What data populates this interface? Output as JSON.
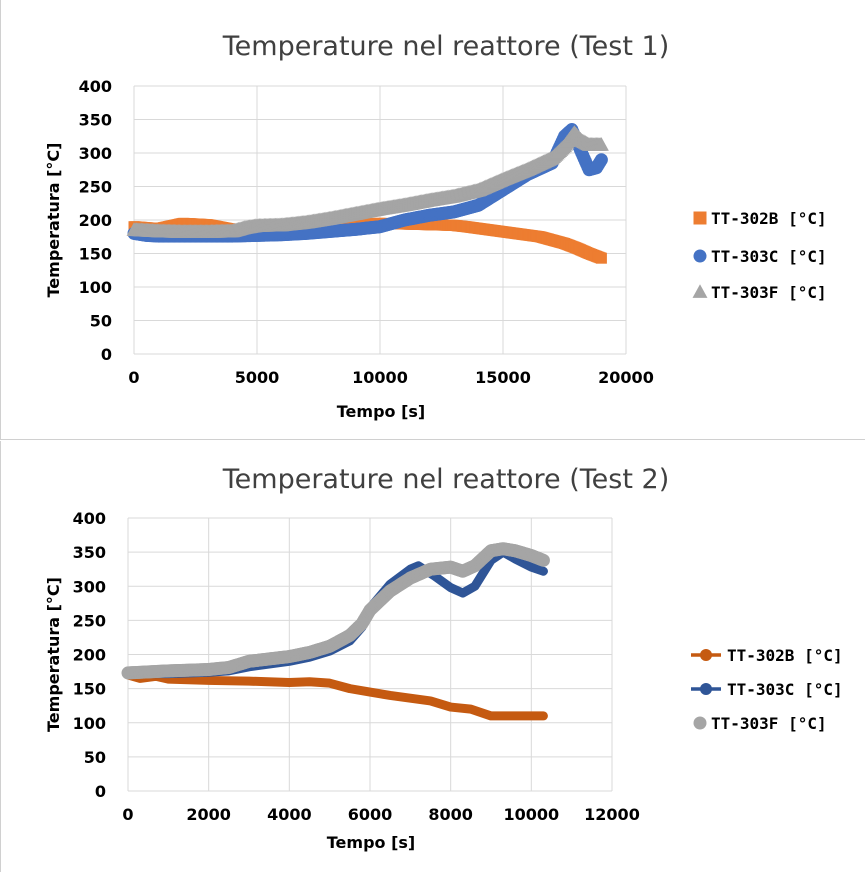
{
  "chart_data": [
    {
      "type": "scatter",
      "title": "Temperature nel reattore (Test 1)",
      "xlabel": "Tempo [s]",
      "ylabel": "Temperatura [°C]",
      "xlim": [
        0,
        20000
      ],
      "ylim": [
        0,
        400
      ],
      "xticks": [
        "0",
        "5000",
        "10000",
        "15000",
        "20000"
      ],
      "yticks": [
        "0",
        "50",
        "100",
        "150",
        "200",
        "250",
        "300",
        "350",
        "400"
      ],
      "grid": true,
      "legend_position": "right",
      "series": [
        {
          "name": "TT-302B [°C]",
          "marker": "square",
          "color": "#ed7d31",
          "x": [
            0,
            1000,
            2000,
            3000,
            4000,
            5000,
            6000,
            7000,
            8000,
            9000,
            10000,
            11000,
            12000,
            13000,
            13500,
            14500,
            15500,
            16500,
            17500,
            18000,
            18500,
            19000
          ],
          "y": [
            190,
            187,
            195,
            193,
            186,
            180,
            182,
            185,
            190,
            193,
            195,
            194,
            193,
            192,
            190,
            185,
            180,
            175,
            165,
            158,
            150,
            143
          ]
        },
        {
          "name": "TT-303C [°C]",
          "marker": "circle",
          "color": "#4472c4",
          "x": [
            0,
            500,
            1000,
            2000,
            3000,
            4000,
            5000,
            6000,
            7000,
            8000,
            9000,
            10000,
            11000,
            12000,
            13000,
            14000,
            15000,
            16000,
            17000,
            17500,
            17800,
            18200,
            18500,
            18800,
            19000
          ],
          "y": [
            180,
            177,
            176,
            176,
            176,
            176,
            177,
            178,
            180,
            183,
            186,
            190,
            200,
            207,
            212,
            222,
            245,
            268,
            285,
            325,
            335,
            300,
            275,
            278,
            290
          ]
        },
        {
          "name": "TT-303F [°C]",
          "marker": "triangle",
          "color": "#a5a5a5",
          "x": [
            0,
            1000,
            2000,
            3000,
            4000,
            4500,
            5000,
            6000,
            7000,
            8000,
            9000,
            10000,
            11000,
            12000,
            13000,
            14000,
            15000,
            16000,
            17000,
            17500,
            17900,
            18200,
            18500,
            19000
          ],
          "y": [
            185,
            183,
            182,
            182,
            183,
            188,
            191,
            192,
            196,
            202,
            209,
            216,
            222,
            229,
            235,
            244,
            260,
            275,
            292,
            310,
            330,
            318,
            312,
            312
          ]
        }
      ]
    },
    {
      "type": "line",
      "title": "Temperature nel reattore (Test 2)",
      "xlabel": "Tempo [s]",
      "ylabel": "Temperatura [°C]",
      "xlim": [
        0,
        12000
      ],
      "ylim": [
        0,
        400
      ],
      "xticks": [
        "0",
        "2000",
        "4000",
        "6000",
        "8000",
        "10000",
        "12000"
      ],
      "yticks": [
        "0",
        "50",
        "100",
        "150",
        "200",
        "250",
        "300",
        "350",
        "400"
      ],
      "grid": true,
      "legend_position": "right",
      "series": [
        {
          "name": "TT-302B [°C]",
          "marker": "line-circle",
          "color": "#c55a11",
          "x": [
            0,
            300,
            700,
            1000,
            2000,
            3000,
            4000,
            4500,
            5000,
            5500,
            6000,
            6500,
            7000,
            7500,
            8000,
            8500,
            9000,
            9500,
            10000,
            10300
          ],
          "y": [
            170,
            165,
            168,
            164,
            162,
            161,
            159,
            160,
            158,
            150,
            145,
            140,
            136,
            132,
            123,
            120,
            110,
            110,
            110,
            110
          ]
        },
        {
          "name": "TT-303C [°C]",
          "marker": "line-circle",
          "color": "#2f5597",
          "x": [
            0,
            1000,
            2000,
            2500,
            3000,
            4000,
            4500,
            5000,
            5500,
            5800,
            6000,
            6500,
            7000,
            7200,
            7600,
            8000,
            8300,
            8600,
            9000,
            9300,
            9600,
            10000,
            10300
          ],
          "y": [
            172,
            172,
            174,
            176,
            182,
            190,
            196,
            205,
            220,
            240,
            268,
            303,
            325,
            330,
            315,
            298,
            290,
            300,
            338,
            350,
            340,
            328,
            322
          ]
        },
        {
          "name": "TT-303F [°C]",
          "marker": "circle",
          "color": "#a5a5a5",
          "x": [
            0,
            1000,
            2000,
            2500,
            3000,
            4000,
            4500,
            5000,
            5500,
            5800,
            6000,
            6500,
            7000,
            7500,
            8000,
            8300,
            8600,
            9000,
            9300,
            9600,
            10000,
            10300
          ],
          "y": [
            173,
            176,
            178,
            181,
            190,
            197,
            203,
            212,
            228,
            245,
            265,
            293,
            312,
            325,
            328,
            322,
            330,
            352,
            355,
            352,
            345,
            338
          ]
        }
      ]
    }
  ]
}
